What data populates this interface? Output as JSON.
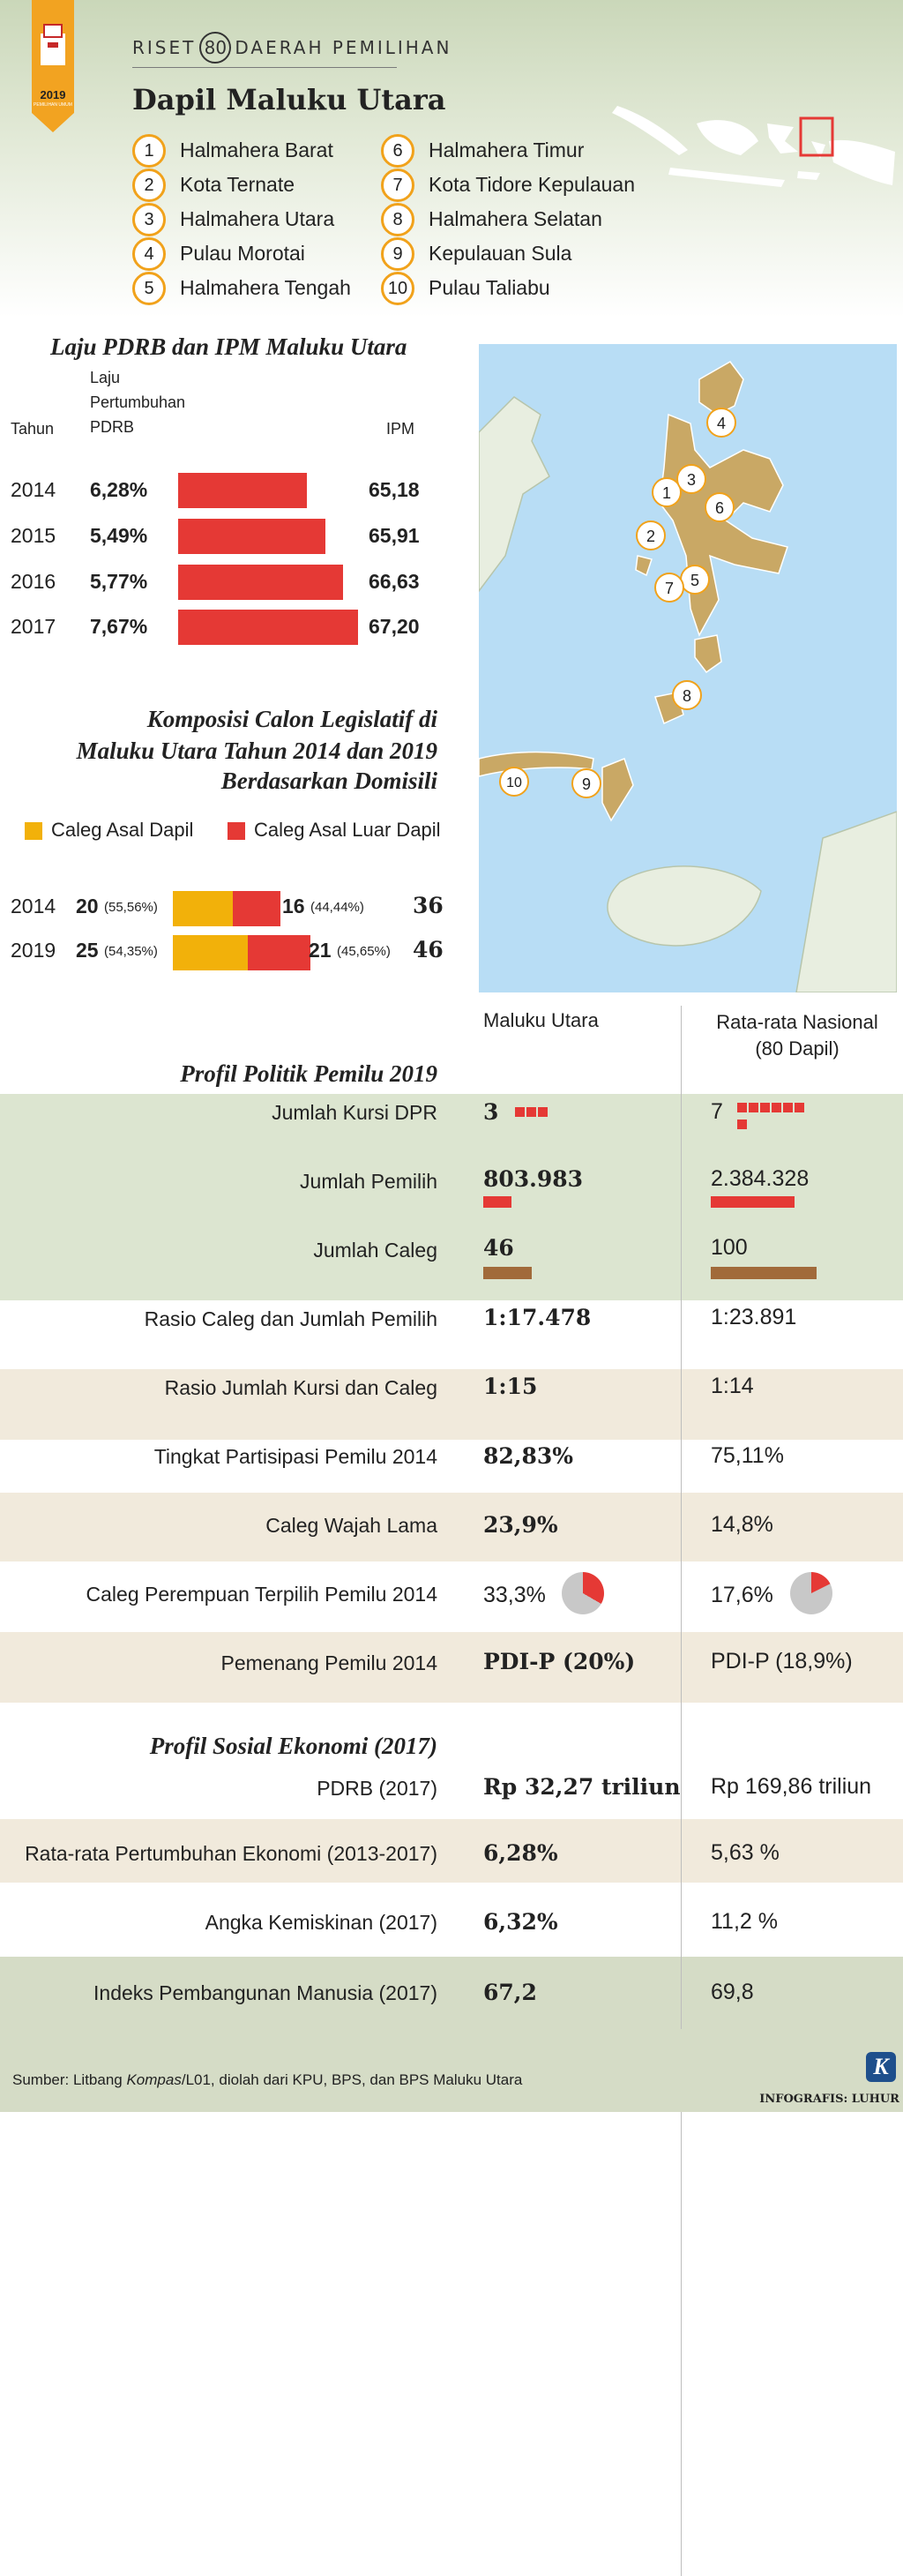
{
  "header": {
    "badge_year": "2019",
    "badge_caption": "PEMILIHAN UMUM",
    "riset_left": "RISET",
    "riset_number": "80",
    "riset_right": "DAERAH PEMILIHAN",
    "title": "Dapil Maluku Utara"
  },
  "districts": [
    {
      "num": "1",
      "name": "Halmahera Barat"
    },
    {
      "num": "2",
      "name": "Kota Ternate"
    },
    {
      "num": "3",
      "name": "Halmahera Utara"
    },
    {
      "num": "4",
      "name": "Pulau Morotai"
    },
    {
      "num": "5",
      "name": "Halmahera Tengah"
    },
    {
      "num": "6",
      "name": "Halmahera Timur"
    },
    {
      "num": "7",
      "name": "Kota Tidore Kepulauan"
    },
    {
      "num": "8",
      "name": "Halmahera Selatan"
    },
    {
      "num": "9",
      "name": "Kepulauan Sula"
    },
    {
      "num": "10",
      "name": "Pulau Taliabu"
    }
  ],
  "pdrb": {
    "title": "Laju PDRB dan IPM Maluku Utara",
    "col_year": "Tahun",
    "col_growth_1": "Laju",
    "col_growth_2": "Pertumbuhan",
    "col_growth_3": "PDRB",
    "col_ipm": "IPM",
    "bar_color": "#e53935",
    "rows": [
      {
        "year": "2014",
        "growth": "6,28%",
        "ipm": "65,18",
        "ipm_value": 65.18
      },
      {
        "year": "2015",
        "growth": "5,49%",
        "ipm": "65,91",
        "ipm_value": 65.91
      },
      {
        "year": "2016",
        "growth": "5,77%",
        "ipm": "66,63",
        "ipm_value": 66.63
      },
      {
        "year": "2017",
        "growth": "7,67%",
        "ipm": "67,20",
        "ipm_value": 67.2
      }
    ]
  },
  "caleg": {
    "title_1": "Komposisi Calon Legislatif di",
    "title_2": "Maluku Utara Tahun 2014 dan 2019",
    "title_3": "Berdasarkan Domisili",
    "legend_local": "Caleg Asal Dapil",
    "legend_outside": "Caleg Asal Luar Dapil",
    "color_local": "#f2b10a",
    "color_outside": "#e53935",
    "rows": [
      {
        "year": "2014",
        "local": "20",
        "local_pct": "(55,56%)",
        "outside": "16",
        "outside_pct": "(44,44%)",
        "total": "36",
        "local_n": 20,
        "outside_n": 16
      },
      {
        "year": "2019",
        "local": "25",
        "local_pct": "(54,35%)",
        "outside": "21",
        "outside_pct": "(45,65%)",
        "total": "46",
        "local_n": 25,
        "outside_n": 21
      }
    ]
  },
  "profile": {
    "col_local": "Maluku Utara",
    "col_nat_1": "Rata-rata Nasional",
    "col_nat_2": "(80 Dapil)",
    "politik_title": "Profil Politik Pemilu 2019",
    "kursi_label": "Jumlah Kursi DPR",
    "kursi_local": "3",
    "kursi_nat": "7",
    "kursi_local_n": 3,
    "kursi_nat_n": 7,
    "pemilih_label": "Jumlah Pemilih",
    "pemilih_local": "803.983",
    "pemilih_nat": "2.384.328",
    "pemilih_local_n": 803983,
    "pemilih_nat_n": 2384328,
    "caleg_label": "Jumlah Caleg",
    "caleg_local": "46",
    "caleg_nat": "100",
    "caleg_local_n": 46,
    "caleg_nat_n": 100,
    "rasio_pemilih_label": "Rasio Caleg dan Jumlah Pemilih",
    "rasio_pemilih_local": "1:17.478",
    "rasio_pemilih_nat": "1:23.891",
    "rasio_kursi_label": "Rasio Jumlah Kursi dan Caleg",
    "rasio_kursi_local": "1:15",
    "rasio_kursi_nat": "1:14",
    "partisipasi_label": "Tingkat Partisipasi Pemilu 2014",
    "partisipasi_local": "82,83%",
    "partisipasi_nat": "75,11%",
    "wajah_label": "Caleg Wajah Lama",
    "wajah_local": "23,9%",
    "wajah_nat": "14,8%",
    "perempuan_label": "Caleg Perempuan Terpilih Pemilu 2014",
    "perempuan_local": "33,3%",
    "perempuan_nat": "17,6%",
    "perempuan_local_n": 33.3,
    "perempuan_nat_n": 17.6,
    "pemenang_label": "Pemenang Pemilu 2014",
    "pemenang_local": "PDI-P (20%)",
    "pemenang_nat": "PDI-P (18,9%)",
    "sosial_title": "Profil Sosial Ekonomi (2017)",
    "pdrb_label": "PDRB (2017)",
    "pdrb_local": "Rp 32,27 triliun",
    "pdrb_nat": "Rp 169,86 triliun",
    "tumbuh_label": "Rata-rata Pertumbuhan Ekonomi (2013-2017)",
    "tumbuh_local": "6,28%",
    "tumbuh_nat": "5,63 %",
    "miskin_label": "Angka Kemiskinan (2017)",
    "miskin_local": "6,32%",
    "miskin_nat": "11,2 %",
    "ipm_label": "Indeks Pembangunan Manusia (2017)",
    "ipm_local": "67,2",
    "ipm_nat": "69,8"
  },
  "footer": {
    "source_prefix": "Sumber: Litbang ",
    "source_italic": "Kompas",
    "source_suffix": "/L01, diolah dari KPU, BPS, dan BPS Maluku Utara",
    "credit": "INFOGRAFIS: LUHUR",
    "logo": "K"
  },
  "map_labels": [
    "1",
    "2",
    "3",
    "4",
    "5",
    "6",
    "7",
    "8",
    "9",
    "10"
  ]
}
